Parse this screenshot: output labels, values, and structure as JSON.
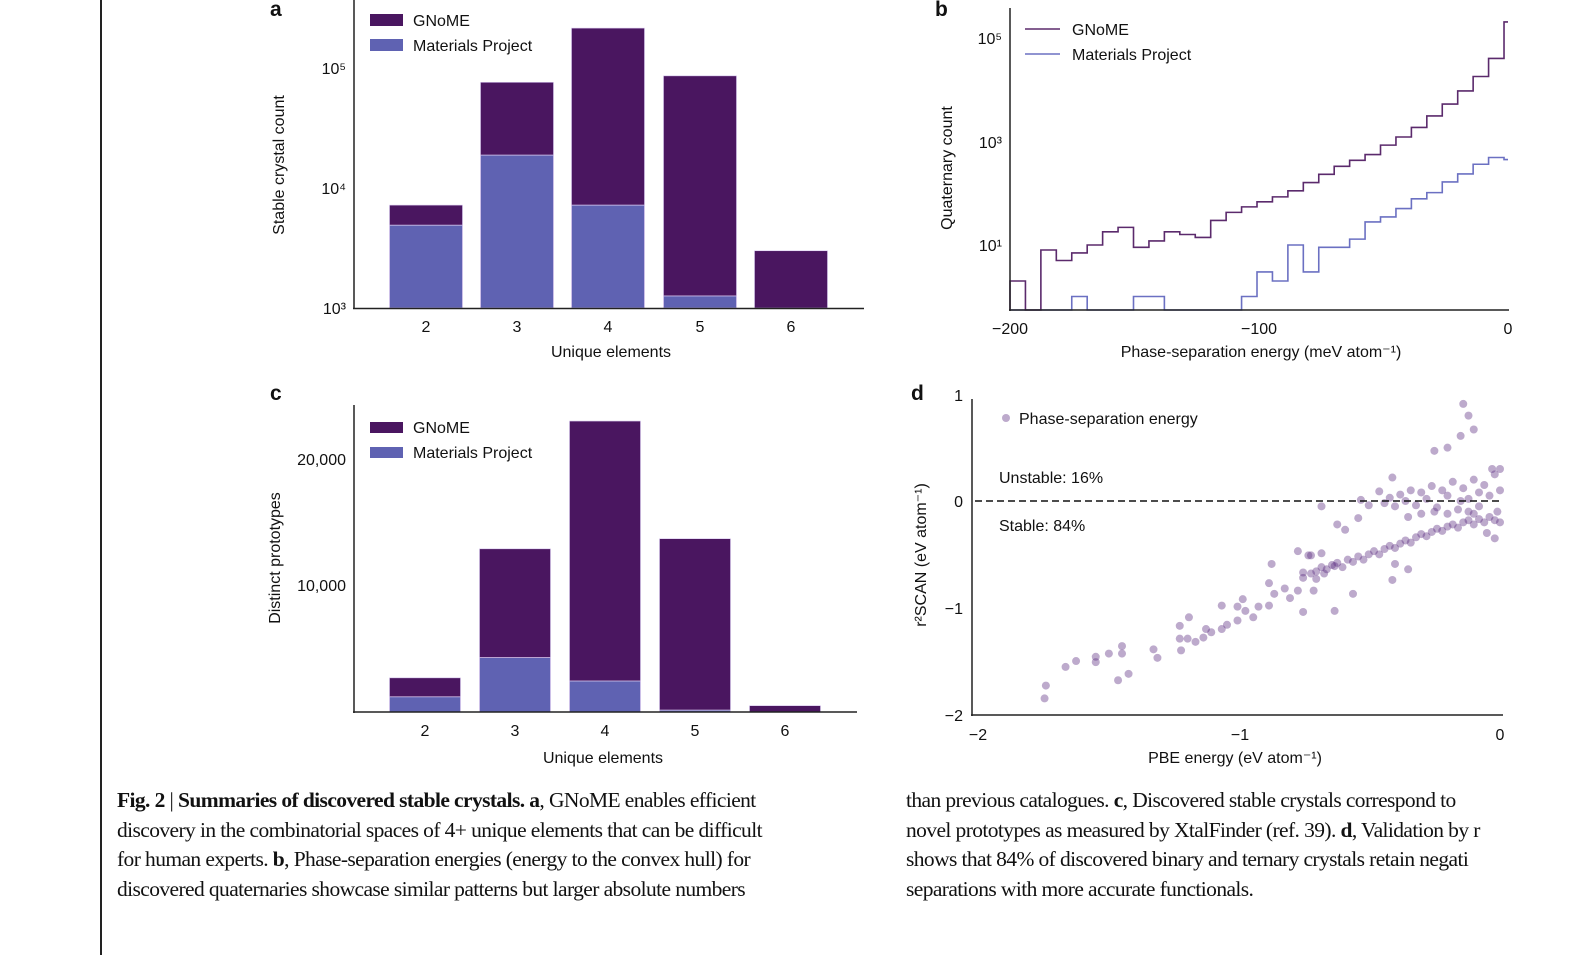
{
  "colors": {
    "gnome": "#4a1660",
    "mp": "#5f62b2",
    "gnome_line": "#5b2a6c",
    "mp_line": "#6b70c2",
    "scatter": "#5a2a80"
  },
  "panels": {
    "a": "a",
    "b": "b",
    "c": "c",
    "d": "d"
  },
  "legend": {
    "gnome": "GNoME",
    "mp": "Materials Project",
    "scatter": "Phase-separation energy"
  },
  "annotations": {
    "unstable": "Unstable: 16%",
    "stable": "Stable: 84%"
  },
  "chart_data": [
    {
      "panel": "a",
      "type": "bar",
      "stacked": true,
      "yscale": "log",
      "xlabel": "Unique elements",
      "ylabel": "Stable crystal count",
      "categories": [
        "2",
        "3",
        "4",
        "5",
        "6"
      ],
      "yticks": [
        "10³",
        "10⁴",
        "10⁵"
      ],
      "ylim": [
        1000,
        300000
      ],
      "series": [
        {
          "name": "Materials Project",
          "values": [
            4900,
            18800,
            7200,
            1260,
            0
          ]
        },
        {
          "name": "GNoME",
          "total_values": [
            7200,
            76000,
            215000,
            86000,
            3000
          ]
        }
      ],
      "legend": "top-left"
    },
    {
      "panel": "b",
      "type": "line",
      "step": true,
      "yscale": "log",
      "xlabel": "Phase-separation energy (meV atom⁻¹)",
      "ylabel": "Quaternary count",
      "xticks": [
        "−200",
        "−100",
        "0"
      ],
      "xlim": [
        -200,
        0
      ],
      "yticks": [
        "10¹",
        "10³",
        "10⁵"
      ],
      "bin_start": -200,
      "bin_width": 6.2,
      "series": [
        {
          "name": "GNoME",
          "values": [
            2,
            0,
            8,
            5,
            7,
            10,
            18,
            22,
            9,
            12,
            18,
            16,
            14,
            30,
            43,
            55,
            69,
            86,
            113,
            163,
            236,
            337,
            440,
            570,
            870,
            1250,
            1920,
            3200,
            5450,
            9800,
            18700,
            41900,
            214000
          ]
        },
        {
          "name": "Materials Project",
          "values": [
            0,
            0,
            0,
            0,
            1,
            0,
            0,
            0,
            1,
            1,
            0,
            0,
            0,
            0,
            0,
            1,
            3,
            2,
            10,
            3,
            9,
            9,
            13,
            28,
            35,
            51,
            79,
            104,
            168,
            240,
            370,
            500,
            455
          ]
        }
      ],
      "legend": "top-left"
    },
    {
      "panel": "c",
      "type": "bar",
      "stacked": true,
      "xlabel": "Unique elements",
      "ylabel": "Distinct prototypes",
      "categories": [
        "2",
        "3",
        "4",
        "5",
        "6"
      ],
      "yticks": [
        "10,000",
        "20,000"
      ],
      "ylim": [
        0,
        24000
      ],
      "series": [
        {
          "name": "Materials Project",
          "values": [
            1200,
            4300,
            2450,
            150,
            0
          ]
        },
        {
          "name": "GNoME",
          "total_values": [
            2700,
            12900,
            23000,
            13700,
            500
          ]
        }
      ],
      "legend": "top-left"
    },
    {
      "panel": "d",
      "type": "scatter",
      "xlabel": "PBE energy (eV atom⁻¹)",
      "ylabel": "r²SCAN (eV atom⁻¹)",
      "xticks": [
        "−2",
        "−1",
        "0"
      ],
      "yticks": [
        "−2",
        "−1",
        "0",
        "1"
      ],
      "xlim": [
        -2,
        0
      ],
      "ylim": [
        -2,
        1
      ],
      "reference_line_y": 0,
      "series": [
        {
          "name": "Phase-separation energy",
          "points": [
            [
              -1.735,
              -1.85
            ],
            [
              -1.73,
              -1.73
            ],
            [
              -1.655,
              -1.555
            ],
            [
              -1.615,
              -1.5
            ],
            [
              -1.54,
              -1.46
            ],
            [
              -1.54,
              -1.51
            ],
            [
              -1.49,
              -1.43
            ],
            [
              -1.44,
              -1.36
            ],
            [
              -1.44,
              -1.43
            ],
            [
              -1.455,
              -1.68
            ],
            [
              -1.415,
              -1.62
            ],
            [
              -1.32,
              -1.39
            ],
            [
              -1.305,
              -1.47
            ],
            [
              -1.22,
              -1.17
            ],
            [
              -1.22,
              -1.29
            ],
            [
              -1.215,
              -1.4
            ],
            [
              -1.19,
              -1.29
            ],
            [
              -1.185,
              -1.09
            ],
            [
              -1.16,
              -1.32
            ],
            [
              -1.13,
              -1.28
            ],
            [
              -1.12,
              -1.2
            ],
            [
              -1.1,
              -1.23
            ],
            [
              -1.06,
              -1.2
            ],
            [
              -1.04,
              -1.16
            ],
            [
              -1.0,
              -1.12
            ],
            [
              -1.06,
              -0.98
            ],
            [
              -0.98,
              -0.92
            ],
            [
              -1.0,
              -0.99
            ],
            [
              -0.97,
              -1.03
            ],
            [
              -0.94,
              -1.09
            ],
            [
              -0.92,
              -0.99
            ],
            [
              -0.88,
              -0.98
            ],
            [
              -0.88,
              -0.77
            ],
            [
              -0.87,
              -0.59
            ],
            [
              -0.86,
              -0.87
            ],
            [
              -0.82,
              -0.82
            ],
            [
              -0.8,
              -0.91
            ],
            [
              -0.77,
              -0.47
            ],
            [
              -0.77,
              -0.84
            ],
            [
              -0.75,
              -0.67
            ],
            [
              -0.73,
              -0.51
            ],
            [
              -0.72,
              -0.51
            ],
            [
              -0.75,
              -1.04
            ],
            [
              -0.71,
              -0.84
            ],
            [
              -0.7,
              -0.73
            ],
            [
              -0.68,
              -0.49
            ],
            [
              -0.67,
              -0.68
            ],
            [
              -0.63,
              -0.61
            ],
            [
              -0.63,
              -1.03
            ],
            [
              -0.62,
              -0.22
            ],
            [
              -0.68,
              -0.05
            ],
            [
              -0.59,
              -0.27
            ],
            [
              -0.56,
              -0.87
            ],
            [
              -0.54,
              -0.16
            ],
            [
              -0.53,
              0.01
            ],
            [
              -0.5,
              -0.04
            ],
            [
              -0.46,
              0.09
            ],
            [
              -0.41,
              0.22
            ],
            [
              -0.41,
              -0.74
            ],
            [
              -0.4,
              -0.59
            ],
            [
              -0.35,
              -0.64
            ],
            [
              -0.25,
              0.47
            ],
            [
              -0.2,
              0.5
            ],
            [
              -0.14,
              0.91
            ],
            [
              -0.12,
              0.8
            ],
            [
              -0.15,
              0.61
            ],
            [
              -0.1,
              0.67
            ],
            [
              -0.75,
              -0.72
            ],
            [
              -0.72,
              -0.68
            ],
            [
              -0.7,
              -0.66
            ],
            [
              -0.68,
              -0.62
            ],
            [
              -0.66,
              -0.64
            ],
            [
              -0.64,
              -0.6
            ],
            [
              -0.62,
              -0.58
            ],
            [
              -0.6,
              -0.62
            ],
            [
              -0.58,
              -0.55
            ],
            [
              -0.56,
              -0.57
            ],
            [
              -0.54,
              -0.52
            ],
            [
              -0.52,
              -0.55
            ],
            [
              -0.5,
              -0.5
            ],
            [
              -0.48,
              -0.47
            ],
            [
              -0.46,
              -0.5
            ],
            [
              -0.44,
              -0.45
            ],
            [
              -0.42,
              -0.42
            ],
            [
              -0.4,
              -0.44
            ],
            [
              -0.38,
              -0.4
            ],
            [
              -0.36,
              -0.37
            ],
            [
              -0.34,
              -0.39
            ],
            [
              -0.32,
              -0.34
            ],
            [
              -0.3,
              -0.31
            ],
            [
              -0.28,
              -0.33
            ],
            [
              -0.26,
              -0.29
            ],
            [
              -0.24,
              -0.26
            ],
            [
              -0.22,
              -0.28
            ],
            [
              -0.2,
              -0.24
            ],
            [
              -0.18,
              -0.22
            ],
            [
              -0.16,
              -0.25
            ],
            [
              -0.14,
              -0.2
            ],
            [
              -0.12,
              -0.18
            ],
            [
              -0.1,
              -0.22
            ],
            [
              -0.08,
              -0.17
            ],
            [
              -0.06,
              -0.2
            ],
            [
              -0.04,
              -0.15
            ],
            [
              -0.02,
              -0.18
            ],
            [
              0,
              -0.2
            ],
            [
              -0.44,
              -0.02
            ],
            [
              -0.42,
              0.03
            ],
            [
              -0.4,
              -0.05
            ],
            [
              -0.38,
              0.06
            ],
            [
              -0.36,
              0.0
            ],
            [
              -0.34,
              0.1
            ],
            [
              -0.32,
              -0.04
            ],
            [
              -0.3,
              0.08
            ],
            [
              -0.28,
              0.02
            ],
            [
              -0.26,
              0.14
            ],
            [
              -0.24,
              -0.06
            ],
            [
              -0.22,
              0.1
            ],
            [
              -0.2,
              0.05
            ],
            [
              -0.18,
              0.18
            ],
            [
              -0.16,
              -0.08
            ],
            [
              -0.14,
              0.12
            ],
            [
              -0.12,
              0.02
            ],
            [
              -0.1,
              0.2
            ],
            [
              -0.08,
              -0.05
            ],
            [
              -0.06,
              0.15
            ],
            [
              -0.04,
              0.05
            ],
            [
              -0.02,
              0.25
            ],
            [
              0,
              0.1
            ],
            [
              -0.01,
              -0.1
            ],
            [
              -0.03,
              0.3
            ],
            [
              -0.05,
              -0.3
            ],
            [
              -0.02,
              -0.35
            ],
            [
              0,
              0.3
            ],
            [
              -0.1,
              -0.12
            ],
            [
              -0.2,
              -0.12
            ],
            [
              -0.3,
              -0.12
            ],
            [
              -0.15,
              0.0
            ],
            [
              -0.25,
              -0.1
            ],
            [
              -0.35,
              -0.15
            ],
            [
              -0.08,
              0.08
            ],
            [
              -0.12,
              -0.1
            ]
          ]
        }
      ],
      "legend": "top-left"
    }
  ],
  "caption": {
    "fig_label": "Fig. 2",
    "sep": "|",
    "title": "Summaries of discovered stable crystals.",
    "lines_left": [
      {
        "bold": "a",
        "text": ", GNoME enables efficient"
      },
      {
        "bold": "",
        "text": "discovery in the combinatorial spaces of 4+ unique elements that can be difficult"
      },
      {
        "bold_pre": "for human experts. ",
        "bold": "b",
        "text": ", Phase-separation energies (energy to the convex hull) for"
      },
      {
        "bold": "",
        "text": "discovered quaternaries showcase similar patterns but larger absolute numbers"
      }
    ],
    "lines_right": [
      {
        "pre": "than previous catalogues. ",
        "bold": "c",
        "text": ", Discovered stable crystals correspond to"
      },
      {
        "pre": "novel prototypes as measured by XtalFinder (ref. 39). ",
        "bold": "d",
        "text": ", Validation by r"
      },
      {
        "pre": "shows that 84% of discovered binary and ternary crystals retain negati",
        "bold": "",
        "text": ""
      },
      {
        "pre": "separations with more accurate functionals.",
        "bold": "",
        "text": ""
      }
    ]
  }
}
